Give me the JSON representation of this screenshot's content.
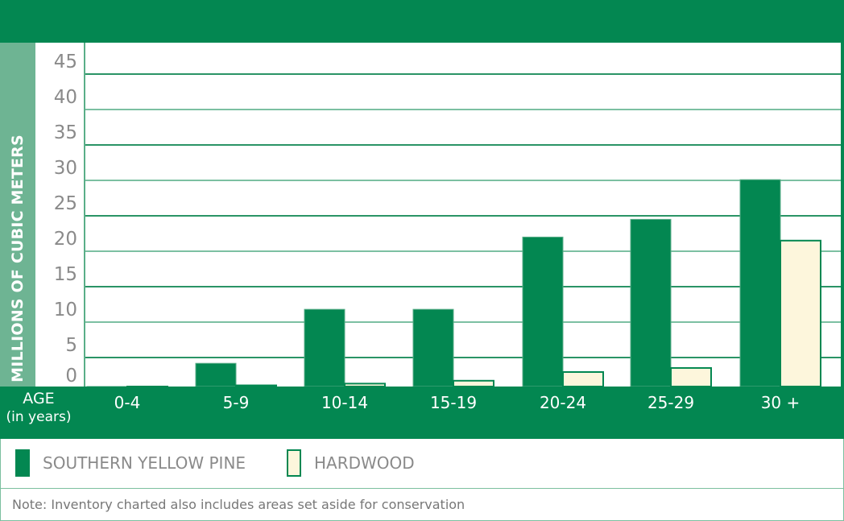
{
  "chart_data": {
    "type": "bar",
    "title": "",
    "xlabel": "AGE",
    "xlabel_sub": "(in years)",
    "ylabel": "MILLIONS OF CUBIC METERS",
    "ylim": [
      0,
      45
    ],
    "yticks": [
      "0",
      "5",
      "10",
      "15",
      "20",
      "25",
      "30",
      "35",
      "40",
      "45"
    ],
    "grid": true,
    "categories": [
      "0-4",
      "5-9",
      "10-14",
      "15-19",
      "20-24",
      "25-29",
      "30 +"
    ],
    "series": [
      {
        "name": "SOUTHERN YELLOW PINE",
        "color": "#038751",
        "values": [
          0,
          4,
          11.8,
          11.8,
          22,
          24.5,
          30.1
        ]
      },
      {
        "name": "HARDWOOD",
        "color": "#fdf6dc",
        "values": [
          0,
          0.2,
          0.5,
          1,
          2.5,
          3.2,
          21.5
        ]
      }
    ],
    "legend_position": "bottom",
    "note": "Note: Inventory charted also includes areas set aside for conservation"
  }
}
